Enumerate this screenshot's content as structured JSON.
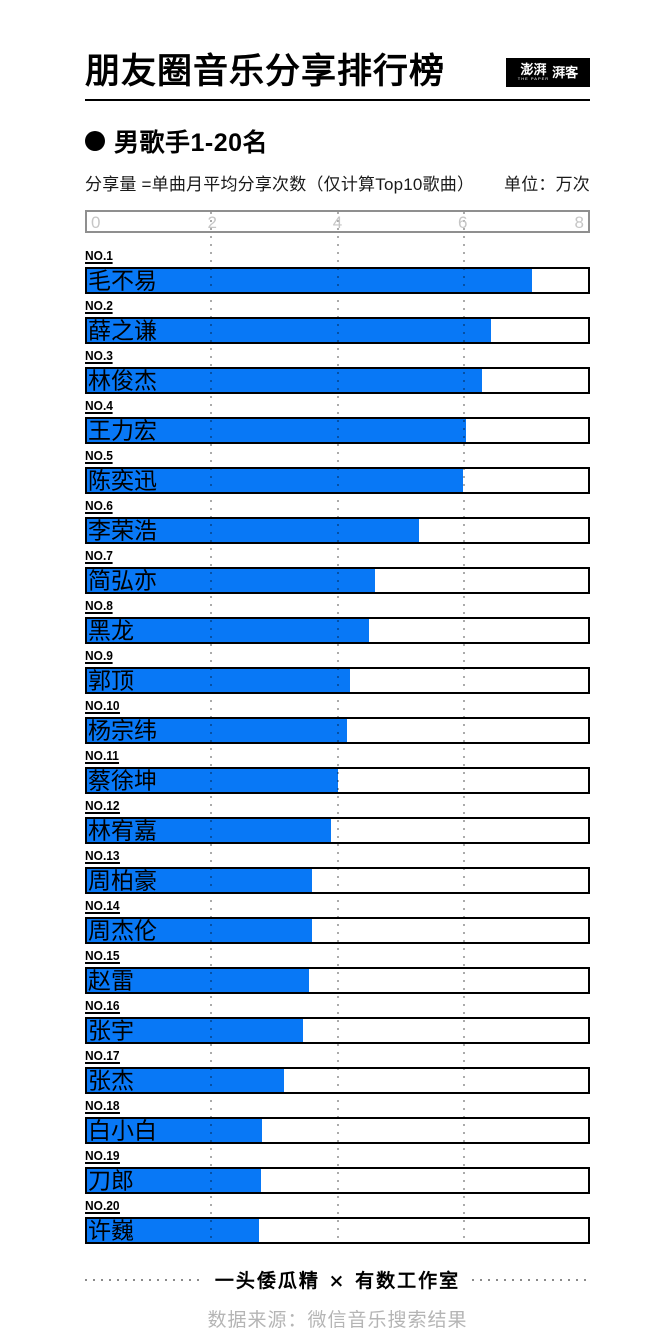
{
  "header": {
    "title": "朋友圈音乐分享排行榜",
    "logo": {
      "brand": "澎湃",
      "brand_sub": "THE PAPER",
      "brand_right": "湃客"
    }
  },
  "section": {
    "subtitle": "男歌手1-20名",
    "note": "分享量 =单曲月平均分享次数（仅计算Top10歌曲）",
    "unit": "单位：万次"
  },
  "chart_data": {
    "type": "bar",
    "orientation": "horizontal",
    "title": "朋友圈音乐分享排行榜 · 男歌手1-20名",
    "xlabel": "分享量（单位：万次）",
    "xlim": [
      0,
      8
    ],
    "tick_labels": [
      "0",
      "2",
      "4",
      "6",
      "8"
    ],
    "tick_values": [
      0,
      2,
      4,
      6,
      8
    ],
    "gridline_values": [
      2,
      4,
      6
    ],
    "grid": "dashed-vertical",
    "ranks": [
      "NO.1",
      "NO.2",
      "NO.3",
      "NO.4",
      "NO.5",
      "NO.6",
      "NO.7",
      "NO.8",
      "NO.9",
      "NO.10",
      "NO.11",
      "NO.12",
      "NO.13",
      "NO.14",
      "NO.15",
      "NO.16",
      "NO.17",
      "NO.18",
      "NO.19",
      "NO.20"
    ],
    "categories": [
      "毛不易",
      "薛之谦",
      "林俊杰",
      "王力宏",
      "陈奕迅",
      "李荣浩",
      "简弘亦",
      "黑龙",
      "郭顶",
      "杨宗纬",
      "蔡徐坤",
      "林宥嘉",
      "周柏豪",
      "周杰伦",
      "赵雷",
      "张宇",
      "张杰",
      "白小白",
      "刀郎",
      "许巍"
    ],
    "values": [
      7.1,
      6.45,
      6.3,
      6.05,
      6.0,
      5.3,
      4.6,
      4.5,
      4.2,
      4.15,
      4.0,
      3.9,
      3.6,
      3.6,
      3.55,
      3.45,
      3.15,
      2.8,
      2.78,
      2.74
    ]
  },
  "footer": {
    "credit": "一头倭瓜精 × 有数工作室",
    "source": "数据来源：微信音乐搜索结果"
  },
  "colors": {
    "bar_fill": "#0878F6",
    "bar_border": "#000000",
    "axis_border": "#8f8f8f",
    "tick_color": "#c6c6c6",
    "source_color": "#b5b5b5"
  }
}
